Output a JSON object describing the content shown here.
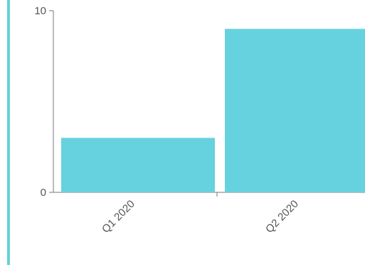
{
  "chart_data": {
    "type": "bar",
    "categories": [
      "Q1 2020",
      "Q2 2020"
    ],
    "series": [
      {
        "values": [
          3,
          9
        ]
      }
    ],
    "yticks": [
      0,
      10
    ],
    "ylim": [
      0,
      10
    ],
    "bar_color": "#67d2df",
    "grid": false,
    "legend": "none"
  },
  "colors": {
    "accent_rule": "#66d0dc",
    "axis": "#777777"
  }
}
